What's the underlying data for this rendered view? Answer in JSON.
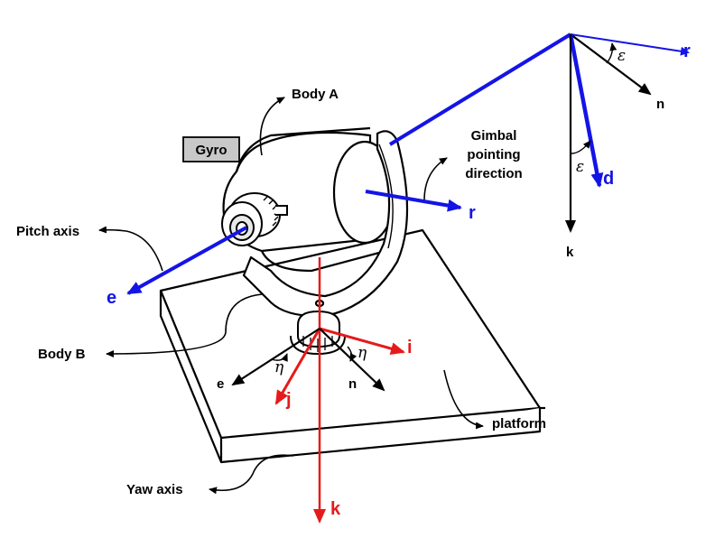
{
  "labels": {
    "body_a": "Body A",
    "body_b": "Body B",
    "gyro": "Gyro",
    "gimbal_line1": "Gimbal",
    "gimbal_line2": "pointing",
    "gimbal_line3": "direction",
    "pitch_axis": "Pitch axis",
    "yaw_axis": "Yaw axis",
    "platform": "platform"
  },
  "vectors": {
    "r": "r",
    "e": "e",
    "i": "i",
    "j": "j",
    "k": "k",
    "n": "n",
    "d": "d"
  },
  "angles": {
    "epsilon": "ε",
    "eta": "η"
  },
  "colors": {
    "blue": "#1414e6",
    "red": "#e61a1a",
    "black": "#000000",
    "gray_box": "#c8c8c8"
  }
}
